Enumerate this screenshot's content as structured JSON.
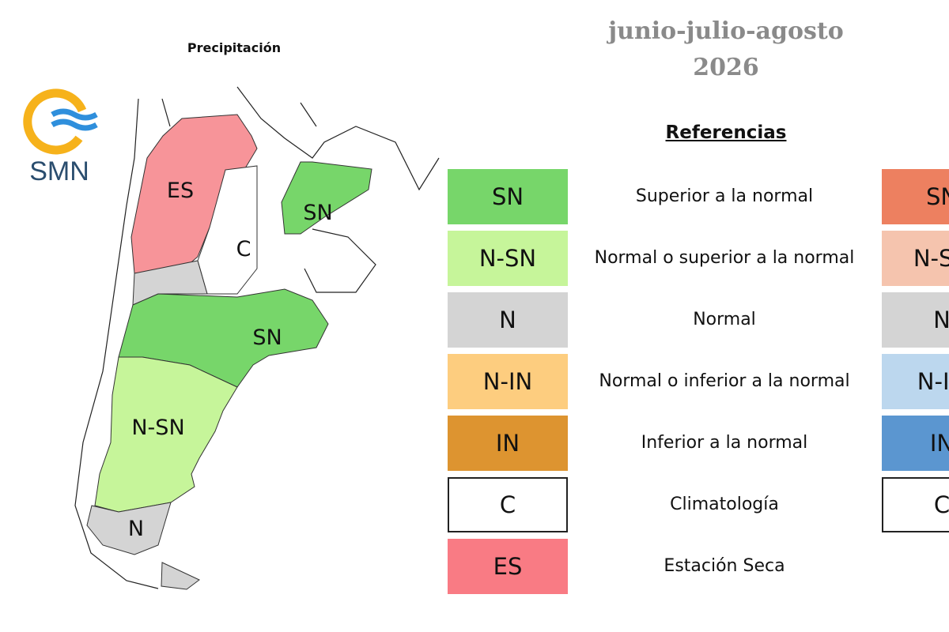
{
  "map_title": "Precipitación",
  "logo": "SMN",
  "period": "junio-julio-agosto",
  "year": "2026",
  "legend": {
    "heading": "Referencias",
    "items": [
      {
        "code": "SN",
        "label": "Superior a la normal",
        "color": "#77d66a"
      },
      {
        "code": "N-SN",
        "label": "Normal o superior a la normal",
        "color": "#c6f59a"
      },
      {
        "code": "N",
        "label": "Normal",
        "color": "#d4d4d4"
      },
      {
        "code": "N-IN",
        "label": "Normal o inferior a la normal",
        "color": "#fdcd7f"
      },
      {
        "code": "IN",
        "label": "Inferior a la normal",
        "color": "#dd9430"
      },
      {
        "code": "C",
        "label": "Climatología",
        "color": "#ffffff"
      },
      {
        "code": "ES",
        "label": "Estación Seca",
        "color": "#f97b84"
      }
    ],
    "second_column": [
      {
        "code": "SN",
        "color": "#ed8060"
      },
      {
        "code": "N-SN",
        "color": "#f5c4ae"
      },
      {
        "code": "N",
        "color": "#d4d4d4"
      },
      {
        "code": "N-IN",
        "color": "#bcd7ee"
      },
      {
        "code": "IN",
        "color": "#5b96d0"
      },
      {
        "code": "C",
        "color": "#ffffff"
      }
    ]
  },
  "map_labels": [
    "ES",
    "SN",
    "C",
    "SN",
    "N-SN",
    "N"
  ]
}
